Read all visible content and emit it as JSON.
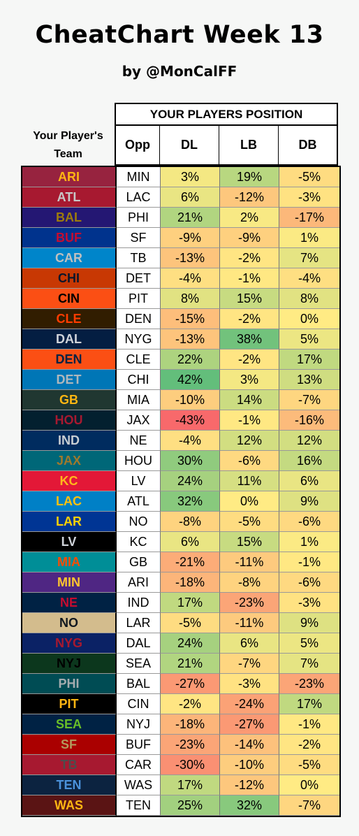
{
  "title": "CheatChart Week 13",
  "subtitle": "by @MonCalFF",
  "headers": {
    "team": "Your Player's Team",
    "group": "YOUR PLAYERS POSITION",
    "opp": "Opp",
    "dl": "DL",
    "lb": "LB",
    "db": "DB"
  },
  "rows": [
    {
      "team": "ARI",
      "opp": "MIN",
      "dl": "3%",
      "lb": "19%",
      "db": "-5%",
      "bg": "#97233F",
      "fg": "#FFB612"
    },
    {
      "team": "ATL",
      "opp": "LAC",
      "dl": "6%",
      "lb": "-12%",
      "db": "-3%",
      "bg": "#A71930",
      "fg": "#C8C8C8"
    },
    {
      "team": "BAL",
      "opp": "PHI",
      "dl": "21%",
      "lb": "2%",
      "db": "-17%",
      "bg": "#241773",
      "fg": "#9E7C0C"
    },
    {
      "team": "BUF",
      "opp": "SF",
      "dl": "-9%",
      "lb": "-9%",
      "db": "1%",
      "bg": "#00338D",
      "fg": "#C60C30"
    },
    {
      "team": "CAR",
      "opp": "TB",
      "dl": "-13%",
      "lb": "-2%",
      "db": "7%",
      "bg": "#0085CA",
      "fg": "#BFC0BF"
    },
    {
      "team": "CHI",
      "opp": "DET",
      "dl": "-4%",
      "lb": "-1%",
      "db": "-4%",
      "bg": "#C83803",
      "fg": "#0B162A"
    },
    {
      "team": "CIN",
      "opp": "PIT",
      "dl": "8%",
      "lb": "15%",
      "db": "8%",
      "bg": "#FB4F14",
      "fg": "#000000"
    },
    {
      "team": "CLE",
      "opp": "DEN",
      "dl": "-15%",
      "lb": "-2%",
      "db": "0%",
      "bg": "#311D00",
      "fg": "#FF3C00"
    },
    {
      "team": "DAL",
      "opp": "NYG",
      "dl": "-13%",
      "lb": "38%",
      "db": "5%",
      "bg": "#041E42",
      "fg": "#D0D4DA"
    },
    {
      "team": "DEN",
      "opp": "CLE",
      "dl": "22%",
      "lb": "-2%",
      "db": "17%",
      "bg": "#FB4F14",
      "fg": "#002244"
    },
    {
      "team": "DET",
      "opp": "CHI",
      "dl": "42%",
      "lb": "3%",
      "db": "13%",
      "bg": "#0076B6",
      "fg": "#B0B7BC"
    },
    {
      "team": "GB",
      "opp": "MIA",
      "dl": "-10%",
      "lb": "14%",
      "db": "-7%",
      "bg": "#203731",
      "fg": "#FFB612"
    },
    {
      "team": "HOU",
      "opp": "JAX",
      "dl": "-43%",
      "lb": "-1%",
      "db": "-16%",
      "bg": "#03202F",
      "fg": "#A71930"
    },
    {
      "team": "IND",
      "opp": "NE",
      "dl": "-4%",
      "lb": "12%",
      "db": "12%",
      "bg": "#002C5F",
      "fg": "#C8CDD2"
    },
    {
      "team": "JAX",
      "opp": "HOU",
      "dl": "30%",
      "lb": "-6%",
      "db": "16%",
      "bg": "#006778",
      "fg": "#9F792C"
    },
    {
      "team": "KC",
      "opp": "LV",
      "dl": "24%",
      "lb": "11%",
      "db": "6%",
      "bg": "#E31837",
      "fg": "#FFB81C"
    },
    {
      "team": "LAC",
      "opp": "ATL",
      "dl": "32%",
      "lb": "0%",
      "db": "9%",
      "bg": "#0080C6",
      "fg": "#FFC20E"
    },
    {
      "team": "LAR",
      "opp": "NO",
      "dl": "-8%",
      "lb": "-5%",
      "db": "-6%",
      "bg": "#003594",
      "fg": "#FFD100"
    },
    {
      "team": "LV",
      "opp": "KC",
      "dl": "6%",
      "lb": "15%",
      "db": "1%",
      "bg": "#000000",
      "fg": "#D0D4DA"
    },
    {
      "team": "MIA",
      "opp": "GB",
      "dl": "-21%",
      "lb": "-11%",
      "db": "-1%",
      "bg": "#008E97",
      "fg": "#FC4C02"
    },
    {
      "team": "MIN",
      "opp": "ARI",
      "dl": "-18%",
      "lb": "-8%",
      "db": "-6%",
      "bg": "#4F2683",
      "fg": "#FFC62F"
    },
    {
      "team": "NE",
      "opp": "IND",
      "dl": "17%",
      "lb": "-23%",
      "db": "-3%",
      "bg": "#002244",
      "fg": "#C60C30"
    },
    {
      "team": "NO",
      "opp": "LAR",
      "dl": "-5%",
      "lb": "-11%",
      "db": "9%",
      "bg": "#D3BC8D",
      "fg": "#101820"
    },
    {
      "team": "NYG",
      "opp": "DAL",
      "dl": "24%",
      "lb": "6%",
      "db": "5%",
      "bg": "#0B2265",
      "fg": "#A71930"
    },
    {
      "team": "NYJ",
      "opp": "SEA",
      "dl": "21%",
      "lb": "-7%",
      "db": "7%",
      "bg": "#0C371D",
      "fg": "#000000"
    },
    {
      "team": "PHI",
      "opp": "BAL",
      "dl": "-27%",
      "lb": "-3%",
      "db": "-23%",
      "bg": "#004C54",
      "fg": "#A5ACAF"
    },
    {
      "team": "PIT",
      "opp": "CIN",
      "dl": "-2%",
      "lb": "-24%",
      "db": "17%",
      "bg": "#000000",
      "fg": "#FFB612"
    },
    {
      "team": "SEA",
      "opp": "NYJ",
      "dl": "-18%",
      "lb": "-27%",
      "db": "-1%",
      "bg": "#002244",
      "fg": "#69BE28"
    },
    {
      "team": "SF",
      "opp": "BUF",
      "dl": "-23%",
      "lb": "-14%",
      "db": "-2%",
      "bg": "#AA0000",
      "fg": "#B3995D"
    },
    {
      "team": "TB",
      "opp": "CAR",
      "dl": "-30%",
      "lb": "-10%",
      "db": "-5%",
      "bg": "#A71930",
      "fg": "#4D4D4D"
    },
    {
      "team": "TEN",
      "opp": "WAS",
      "dl": "17%",
      "lb": "-12%",
      "db": "0%",
      "bg": "#0C2340",
      "fg": "#4B92DB"
    },
    {
      "team": "WAS",
      "opp": "TEN",
      "dl": "25%",
      "lb": "32%",
      "db": "-7%",
      "bg": "#5A1414",
      "fg": "#FFB612"
    }
  ]
}
